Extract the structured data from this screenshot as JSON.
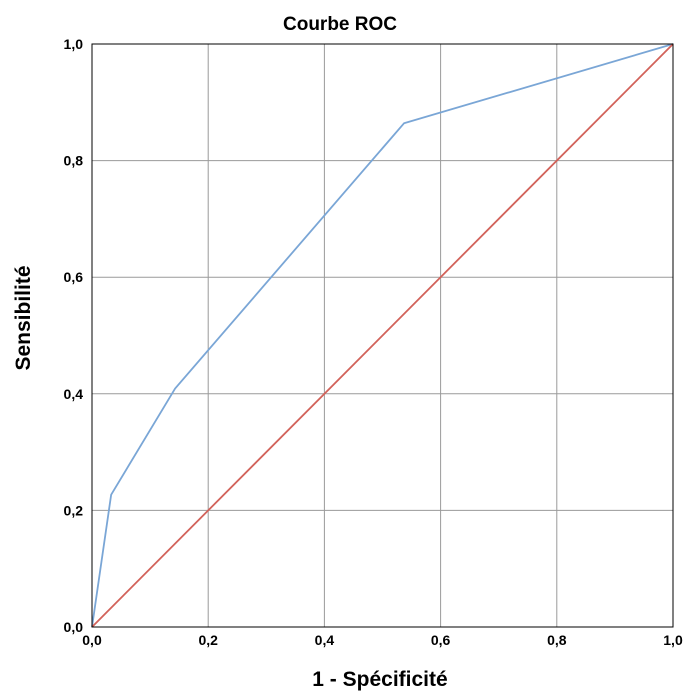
{
  "chart_data": {
    "type": "line",
    "title": "Courbe ROC",
    "xlabel": "1 - Spécificité",
    "ylabel": "Sensibilité",
    "xlim": [
      0,
      1
    ],
    "ylim": [
      0,
      1
    ],
    "x_ticks": [
      0,
      0.2,
      0.4,
      0.6,
      0.8,
      1.0
    ],
    "y_ticks": [
      0,
      0.2,
      0.4,
      0.6,
      0.8,
      1.0
    ],
    "x_tick_labels": [
      "0,0",
      "0,2",
      "0,4",
      "0,6",
      "0,8",
      "1,0"
    ],
    "y_tick_labels": [
      "0,0",
      "0,2",
      "0,4",
      "0,6",
      "0,8",
      "1,0"
    ],
    "grid": true,
    "series": [
      {
        "role": "roc-curve",
        "color": "#7aa6d6",
        "x": [
          0.0,
          0.033,
          0.143,
          0.537,
          1.0
        ],
        "y": [
          0.0,
          0.227,
          0.409,
          0.864,
          1.0
        ]
      },
      {
        "role": "reference-line",
        "color": "#d2625a",
        "x": [
          0.0,
          1.0
        ],
        "y": [
          0.0,
          1.0
        ]
      }
    ]
  }
}
